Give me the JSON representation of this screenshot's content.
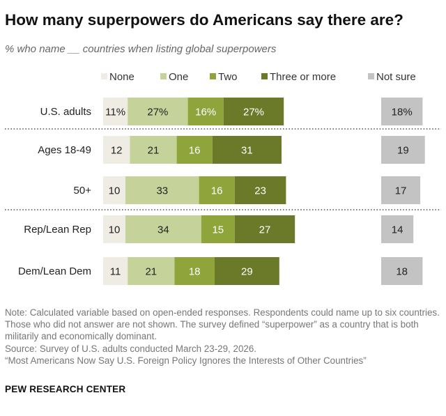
{
  "title": "How many superpowers do Americans say there are?",
  "subtitle": "% who name __ countries when listing global superpowers",
  "colors": {
    "None": "#efece3",
    "One": "#c5d39a",
    "Two": "#8fa53c",
    "Three or more": "#6a7a29",
    "Not sure": "#c3c3c3"
  },
  "chart_data": {
    "type": "bar",
    "orientation": "horizontal",
    "stacked": true,
    "legend_position": "top",
    "categories": [
      "U.S. adults",
      "Ages 18-49",
      "50+",
      "Rep/Lean Rep",
      "Dem/Lean Dem"
    ],
    "series": [
      {
        "name": "None",
        "values": [
          11,
          12,
          10,
          10,
          11
        ],
        "labels": [
          "11%",
          "12",
          "10",
          "10",
          "11"
        ]
      },
      {
        "name": "One",
        "values": [
          27,
          21,
          33,
          34,
          21
        ],
        "labels": [
          "27%",
          "21",
          "33",
          "34",
          "21"
        ]
      },
      {
        "name": "Two",
        "values": [
          16,
          16,
          16,
          15,
          18
        ],
        "labels": [
          "16%",
          "16",
          "16",
          "15",
          "18"
        ]
      },
      {
        "name": "Three or more",
        "values": [
          27,
          31,
          23,
          27,
          29
        ],
        "labels": [
          "27%",
          "31",
          "23",
          "27",
          "29"
        ]
      }
    ],
    "not_sure": {
      "name": "Not sure",
      "values": [
        18,
        19,
        17,
        14,
        18
      ],
      "labels": [
        "18%",
        "19",
        "17",
        "14",
        "18"
      ]
    }
  },
  "notes": [
    "Note: Calculated variable based on open-ended responses. Respondents could name up to six countries. Those who did not answer are not shown. The survey defined “superpower” as a country that is both militarily and economically dominant.",
    "Source: Survey of U.S. adults conducted March 23-29, 2026.",
    "“Most Americans Now Say U.S. Foreign Policy Ignores the Interests of Other Countries”"
  ],
  "brand": "PEW RESEARCH CENTER"
}
